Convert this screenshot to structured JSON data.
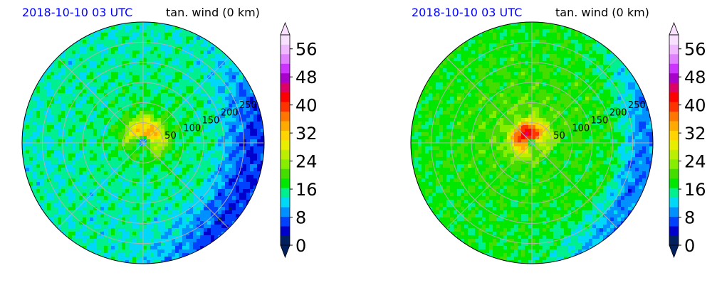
{
  "colors": {
    "title_time": "#0000ff",
    "title_field": "#000000",
    "grid": "#b0b0b0",
    "colormap": [
      "#002060",
      "#0000cc",
      "#0040ff",
      "#0090ff",
      "#00d8f8",
      "#00f090",
      "#00e800",
      "#44dd00",
      "#88ee00",
      "#bbee00",
      "#e8ee00",
      "#ffd400",
      "#ffaa00",
      "#ff7700",
      "#ff3300",
      "#ff0000",
      "#dd0066",
      "#aa00cc",
      "#cc33ff",
      "#e080ff",
      "#f0b8ff",
      "#fae0ff"
    ]
  },
  "chart_data": [
    {
      "type": "heatmap",
      "projection": "polar",
      "title_time": "2018-10-10 03 UTC",
      "title_field": "tan. wind (0 km)",
      "radial_ticks": [
        "50",
        "100",
        "150",
        "200",
        "250"
      ],
      "radial_tick_values": [
        50,
        100,
        150,
        200,
        250
      ],
      "r_max": 300,
      "grid": true,
      "colorbar": {
        "ticks": [
          "0",
          "8",
          "16",
          "24",
          "32",
          "40",
          "48",
          "56"
        ],
        "tick_values": [
          0,
          8,
          16,
          24,
          32,
          40,
          48,
          56
        ],
        "vmin": 0,
        "vmax": 60,
        "extend": "both"
      },
      "field": {
        "background": 14,
        "center_min": 3,
        "eye_radius": 15,
        "rmw": 30,
        "max_wind": 34,
        "max_angle_deg": 70,
        "outer": [
          {
            "angle_deg": -20,
            "value": 6,
            "r_start": 170
          }
        ]
      }
    },
    {
      "type": "heatmap",
      "projection": "polar",
      "title_time": "2018-10-10 03 UTC",
      "title_field": "tan. wind (0 km)",
      "radial_ticks": [
        "50",
        "100",
        "150",
        "200",
        "250"
      ],
      "radial_tick_values": [
        50,
        100,
        150,
        200,
        250
      ],
      "r_max": 300,
      "grid": true,
      "colorbar": {
        "ticks": [
          "0",
          "8",
          "16",
          "24",
          "32",
          "40",
          "48",
          "56"
        ],
        "tick_values": [
          0,
          8,
          16,
          24,
          32,
          40,
          48,
          56
        ],
        "vmin": 0,
        "vmax": 60,
        "extend": "both"
      },
      "field": {
        "background": 17,
        "center_min": 5,
        "eye_radius": 10,
        "rmw": 25,
        "max_wind": 44,
        "max_angle_deg": 120,
        "outer": [
          {
            "angle_deg": -15,
            "value": 9,
            "r_start": 200
          }
        ]
      }
    }
  ]
}
